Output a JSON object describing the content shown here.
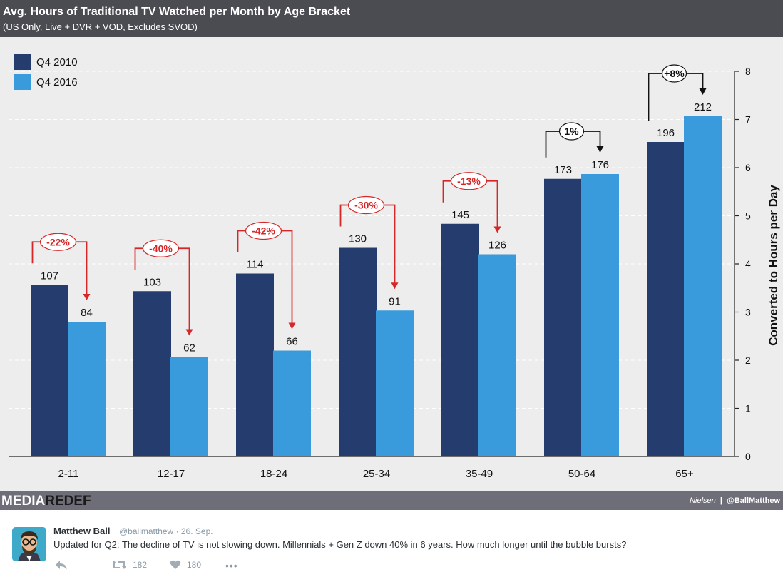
{
  "header": {
    "title": "Avg. Hours of Traditional TV Watched per Month by Age Bracket",
    "subtitle": "(US Only, Live + DVR + VOD, Excludes SVOD)"
  },
  "chart_data": {
    "type": "bar",
    "title": "Avg. Hours of Traditional TV Watched per Month by Age Bracket",
    "subtitle": "(US Only, Live + DVR + VOD, Excludes SVOD)",
    "categories": [
      "2-11",
      "12-17",
      "18-24",
      "25-34",
      "35-49",
      "50-64",
      "65+"
    ],
    "series": [
      {
        "name": "Q4 2010",
        "values": [
          107,
          103,
          114,
          130,
          145,
          173,
          196
        ],
        "color": "#243d6e"
      },
      {
        "name": "Q4 2016",
        "values": [
          84,
          62,
          66,
          91,
          126,
          176,
          212
        ],
        "color": "#3a9bdc"
      }
    ],
    "changes": [
      "-22%",
      "-40%",
      "-42%",
      "-30%",
      "-13%",
      "1%",
      "+8%"
    ],
    "y2label": "Converted to Hours per Day",
    "y2ticks": [
      "0",
      "1",
      "2",
      "3",
      "4",
      "5",
      "6",
      "7",
      "8"
    ],
    "ylim": [
      0,
      240
    ],
    "y2lim": [
      0,
      8
    ],
    "grid": true,
    "legend": "top-left"
  },
  "footer": {
    "logo_media": "MEDIA",
    "logo_redef": "REDEF",
    "source": "Nielsen",
    "separator": "|",
    "handle": "@BallMatthew"
  },
  "tweet": {
    "name": "Matthew Ball",
    "handle_date": "@ballmatthew · 26. Sep.",
    "text": "Updated for Q2: The decline of TV is not slowing down. Millennials + Gen Z down 40% in 6 years. How much longer until the bubble bursts?",
    "retweets": "182",
    "likes": "180",
    "more": "•••"
  },
  "colors": {
    "q4_2010": "#243d6e",
    "q4_2016": "#3a9bdc",
    "decline": "#d62728",
    "increase": "#111111"
  }
}
